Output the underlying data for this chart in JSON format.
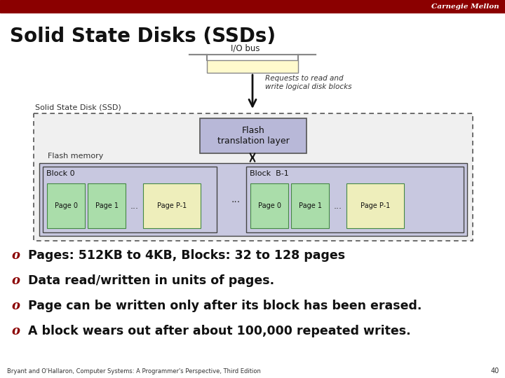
{
  "title": "Solid State Disks (SSDs)",
  "header_bar_color": "#8B0000",
  "header_text": "Carnegie Mellon",
  "header_text_color": "#FFFFFF",
  "background_color": "#FFFFFF",
  "io_bus_label": "I/O bus",
  "io_bus_color": "#FFFACD",
  "io_bus_border": "#888888",
  "arrow_color": "#111111",
  "requests_text": "Requests to read and\nwrite logical disk blocks",
  "ssd_label": "Solid State Disk (SSD)",
  "ssd_border": "#555555",
  "ftl_label": "Flash\ntranslation layer",
  "ftl_bg": "#B8B8D8",
  "ftl_border": "#555555",
  "flash_memory_label": "Flash memory",
  "block0_label": "Block 0",
  "block_b1_label": "Block  B-1",
  "flash_mem_bg": "#C8C8E0",
  "block_bg": "#C8C8E0",
  "block_border": "#444444",
  "page_bg_green": "#AADDAA",
  "page_bg_yellow": "#EEEEBB",
  "page_border": "#448844",
  "page_labels_block0": [
    "Page 0",
    "Page 1",
    "...",
    "Page P-1"
  ],
  "page_labels_blockb1": [
    "Page 0",
    "Page 1",
    "...",
    "Page P-1"
  ],
  "bullet_char": "o",
  "bullet_color": "#8B0000",
  "bullets": [
    "Pages: 512KB to 4KB, Blocks: 32 to 128 pages",
    "Data read/written in units of pages.",
    "Page can be written only after its block has been erased.",
    "A block wears out after about 100,000 repeated writes."
  ],
  "footer_text": "Bryant and O'Hallaron, Computer Systems: A Programmer's Perspective, Third Edition",
  "footer_page": "40"
}
